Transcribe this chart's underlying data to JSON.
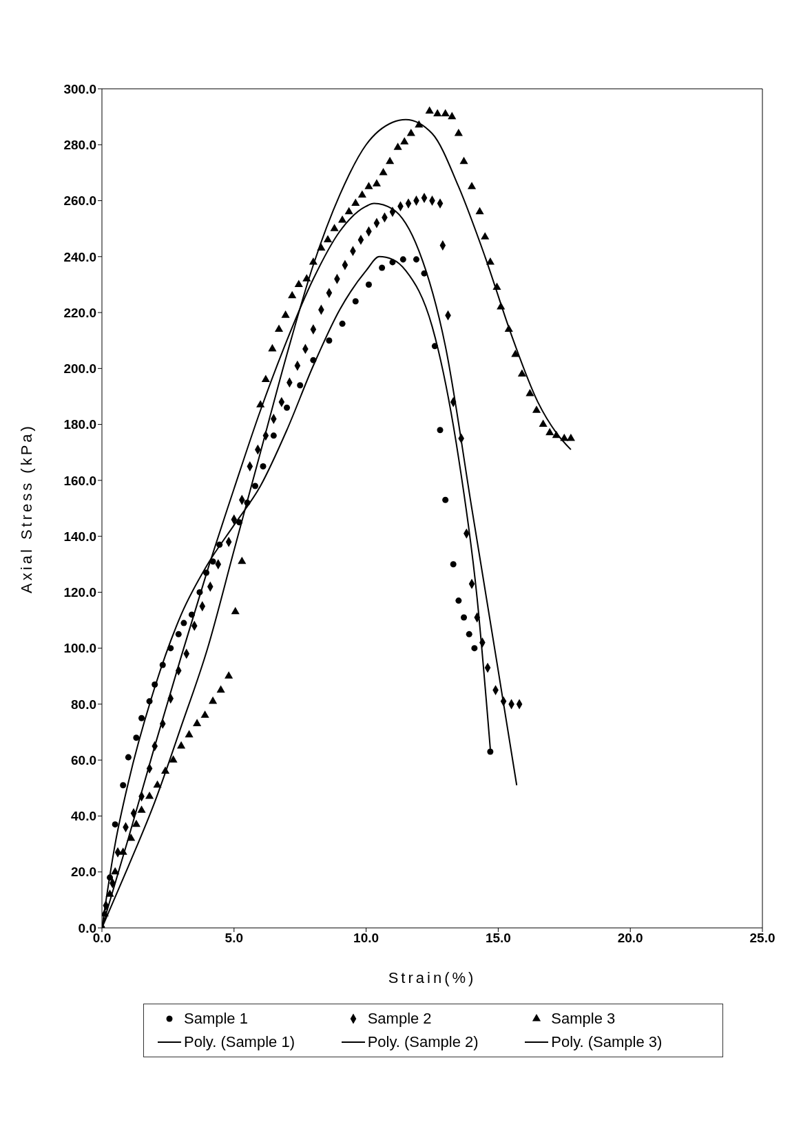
{
  "chart_data": {
    "type": "scatter",
    "xlabel": "Strain(%)",
    "ylabel": "Axial Stress (kPa)",
    "xlim": [
      0,
      25
    ],
    "xticks": [
      {
        "value": 0,
        "label": "0.0"
      },
      {
        "value": 5,
        "label": "5.0"
      },
      {
        "value": 10,
        "label": "10.0"
      },
      {
        "value": 15,
        "label": "15.0"
      },
      {
        "value": 20,
        "label": "20.0"
      },
      {
        "value": 25,
        "label": "25.0"
      }
    ],
    "ylim": [
      0,
      300
    ],
    "yticks": [
      {
        "value": 0,
        "label": "0.0"
      },
      {
        "value": 20,
        "label": "20.0"
      },
      {
        "value": 40,
        "label": "40.0"
      },
      {
        "value": 60,
        "label": "60.0"
      },
      {
        "value": 80,
        "label": "80.0"
      },
      {
        "value": 100,
        "label": "100.0"
      },
      {
        "value": 120,
        "label": "120.0"
      },
      {
        "value": 140,
        "label": "140.0"
      },
      {
        "value": 160,
        "label": "160.0"
      },
      {
        "value": 180,
        "label": "180.0"
      },
      {
        "value": 200,
        "label": "200.0"
      },
      {
        "value": 220,
        "label": "220.0"
      },
      {
        "value": 240,
        "label": "240.0"
      },
      {
        "value": 260,
        "label": "260.0"
      },
      {
        "value": 280,
        "label": "280.0"
      },
      {
        "value": 300,
        "label": "300.0"
      }
    ],
    "grid": false,
    "legend": "bottom",
    "series": [
      {
        "name": "Sample 1",
        "marker": "circle",
        "color": "#000000",
        "x": [
          0,
          0.3,
          0.5,
          0.8,
          1.0,
          1.3,
          1.5,
          1.8,
          2.0,
          2.3,
          2.6,
          2.9,
          3.1,
          3.4,
          3.7,
          3.95,
          4.2,
          4.45,
          5.2,
          5.5,
          5.8,
          6.1,
          6.5,
          7.0,
          7.5,
          8.0,
          8.6,
          9.1,
          9.6,
          10.1,
          10.6,
          11.0,
          11.4,
          11.9,
          12.2,
          12.6,
          12.8,
          13.0,
          13.3,
          13.5,
          13.7,
          13.9,
          14.1,
          14.7
        ],
        "values": [
          0,
          18,
          37,
          51,
          61,
          68,
          75,
          81,
          87,
          94,
          100,
          105,
          109,
          112,
          120,
          127,
          131,
          137,
          145,
          152,
          158,
          165,
          176,
          186,
          194,
          203,
          210,
          216,
          224,
          230,
          236,
          238,
          239,
          239,
          234,
          208,
          178,
          153,
          130,
          117,
          111,
          105,
          100,
          63
        ]
      },
      {
        "name": "Sample 2",
        "marker": "diamond",
        "color": "#000000",
        "x": [
          0.15,
          0.4,
          0.6,
          0.9,
          1.2,
          1.5,
          1.8,
          2.0,
          2.3,
          2.6,
          2.9,
          3.2,
          3.5,
          3.8,
          4.1,
          4.4,
          4.8,
          5.0,
          5.3,
          5.6,
          5.9,
          6.2,
          6.5,
          6.8,
          7.1,
          7.4,
          7.7,
          8.0,
          8.3,
          8.6,
          8.9,
          9.2,
          9.5,
          9.8,
          10.1,
          10.4,
          10.7,
          11.0,
          11.3,
          11.6,
          11.9,
          12.2,
          12.5,
          12.8,
          12.9,
          13.1,
          13.3,
          13.6,
          13.8,
          14.0,
          14.2,
          14.4,
          14.6,
          14.9,
          15.2,
          15.5,
          15.8
        ],
        "values": [
          8,
          16,
          27,
          36,
          41,
          47,
          57,
          65,
          73,
          82,
          92,
          98,
          108,
          115,
          122,
          130,
          138,
          146,
          153,
          165,
          171,
          176,
          182,
          188,
          195,
          201,
          207,
          214,
          221,
          227,
          232,
          237,
          242,
          246,
          249,
          252,
          254,
          256,
          258,
          259,
          260,
          261,
          260,
          259,
          244,
          219,
          188,
          175,
          141,
          123,
          111,
          102,
          93,
          85,
          81,
          80,
          80
        ]
      },
      {
        "name": "Sample 3",
        "marker": "triangle",
        "color": "#000000",
        "x": [
          0.1,
          0.3,
          0.5,
          0.8,
          1.1,
          1.3,
          1.5,
          1.8,
          2.1,
          2.4,
          2.7,
          3.0,
          3.3,
          3.6,
          3.9,
          4.2,
          4.5,
          4.8,
          5.05,
          5.3,
          6.0,
          6.2,
          6.45,
          6.7,
          6.95,
          7.2,
          7.45,
          7.75,
          8.0,
          8.3,
          8.55,
          8.8,
          9.1,
          9.35,
          9.6,
          9.85,
          10.1,
          10.4,
          10.65,
          10.9,
          11.2,
          11.45,
          11.7,
          12.0,
          12.4,
          12.7,
          13.0,
          13.25,
          13.5,
          13.7,
          14.0,
          14.3,
          14.5,
          14.7,
          14.95,
          15.1,
          15.4,
          15.65,
          15.9,
          16.2,
          16.45,
          16.7,
          16.95,
          17.2,
          17.5,
          17.75
        ],
        "values": [
          5,
          12,
          20,
          27,
          32,
          37,
          42,
          47,
          51,
          56,
          60,
          65,
          69,
          73,
          76,
          81,
          85,
          90,
          113,
          131,
          187,
          196,
          207,
          214,
          219,
          226,
          230,
          232,
          238,
          243,
          246,
          250,
          253,
          256,
          259,
          262,
          265,
          266,
          270,
          274,
          279,
          281,
          284,
          287,
          292,
          291,
          291,
          290,
          284,
          274,
          265,
          256,
          247,
          238,
          229,
          222,
          214,
          205,
          198,
          191,
          185,
          180,
          177,
          176,
          175,
          175
        ]
      },
      {
        "name": "Poly. (Sample 1)",
        "type": "line",
        "marker": "none",
        "line_style": "solid",
        "color": "#000000",
        "x": [
          0,
          0.5,
          1,
          2,
          3,
          4,
          5,
          6,
          7,
          8,
          9,
          10,
          10.5,
          11,
          11.5,
          12.5,
          13.5,
          14.2,
          14.7
        ],
        "values": [
          0,
          30,
          52,
          86,
          112,
          130,
          144,
          158,
          178,
          201,
          221,
          235,
          240,
          239,
          235,
          215,
          168,
          118,
          64
        ]
      },
      {
        "name": "Poly. (Sample 2)",
        "type": "line",
        "marker": "none",
        "line_style": "solid",
        "color": "#000000",
        "x": [
          0,
          1,
          2,
          3,
          4,
          5,
          6,
          7,
          8,
          9,
          10,
          10.3,
          11,
          12,
          13,
          14,
          15,
          15.7
        ],
        "values": [
          0,
          32,
          65,
          97,
          128,
          157,
          185,
          210,
          232,
          249,
          258,
          259,
          257,
          242,
          208,
          150,
          92,
          51
        ]
      },
      {
        "name": "Poly. (Sample 3)",
        "type": "line",
        "marker": "none",
        "line_style": "solid",
        "color": "#000000",
        "x": [
          0,
          1,
          2,
          3,
          4,
          5,
          6,
          7,
          8,
          9,
          10,
          11,
          11.5,
          12.5,
          13.5,
          14.5,
          15.5,
          16.5,
          17.2,
          17.75
        ],
        "values": [
          0,
          22,
          45,
          72,
          100,
          135,
          170,
          205,
          237,
          262,
          280,
          288,
          289,
          284,
          265,
          240,
          212,
          188,
          177,
          171
        ]
      }
    ]
  }
}
